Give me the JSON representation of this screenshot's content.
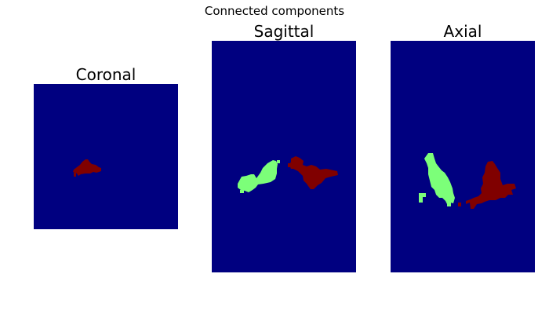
{
  "figure": {
    "title": "Connected components"
  },
  "colors": {
    "background": "#000080",
    "component_1": "#7cff79",
    "component_2": "#800000"
  },
  "panels": [
    {
      "title": "Coronal"
    },
    {
      "title": "Sagittal"
    },
    {
      "title": "Axial"
    }
  ]
}
